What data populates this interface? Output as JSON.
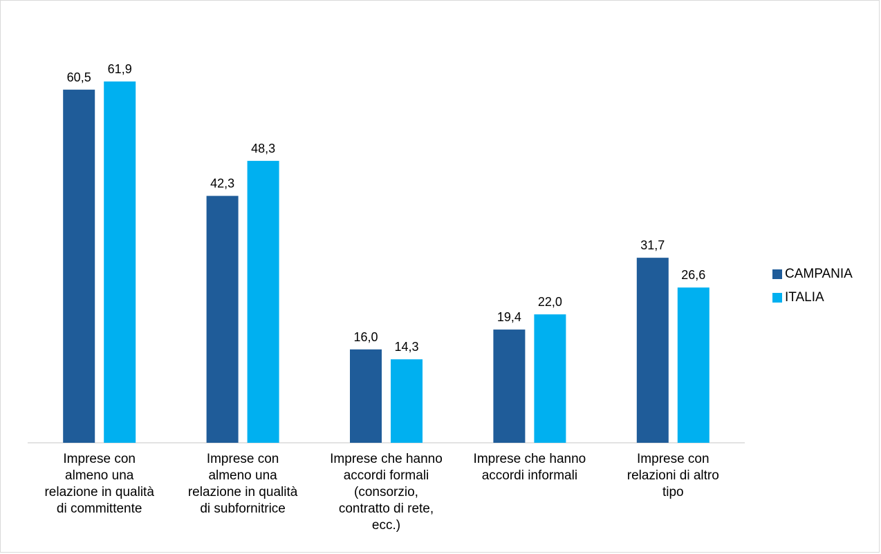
{
  "chart_data": {
    "type": "bar",
    "categories": [
      "Imprese con\nalmeno una\nrelazione in qualità\ndi committente",
      "Imprese  con\nalmeno una\nrelazione in qualità\ndi subfornitrice",
      "Imprese che hanno\naccordi formali\n(consorzio,\ncontratto di rete,\necc.)",
      "Imprese che hanno\naccordi informali",
      "Imprese con\nrelazioni di altro\ntipo"
    ],
    "series": [
      {
        "name": "CAMPANIA",
        "color": "#1f5c99",
        "values": [
          60.5,
          42.3,
          16.0,
          19.4,
          31.7
        ],
        "labels": [
          "60,5",
          "42,3",
          "16,0",
          "19,4",
          "31,7"
        ]
      },
      {
        "name": "ITALIA",
        "color": "#00b0f0",
        "values": [
          61.9,
          48.3,
          14.3,
          22.0,
          26.6
        ],
        "labels": [
          "61,9",
          "48,3",
          "14,3",
          "22,0",
          "26,6"
        ]
      }
    ],
    "ylim": [
      0,
      70
    ],
    "grid": false,
    "legend": "right"
  }
}
